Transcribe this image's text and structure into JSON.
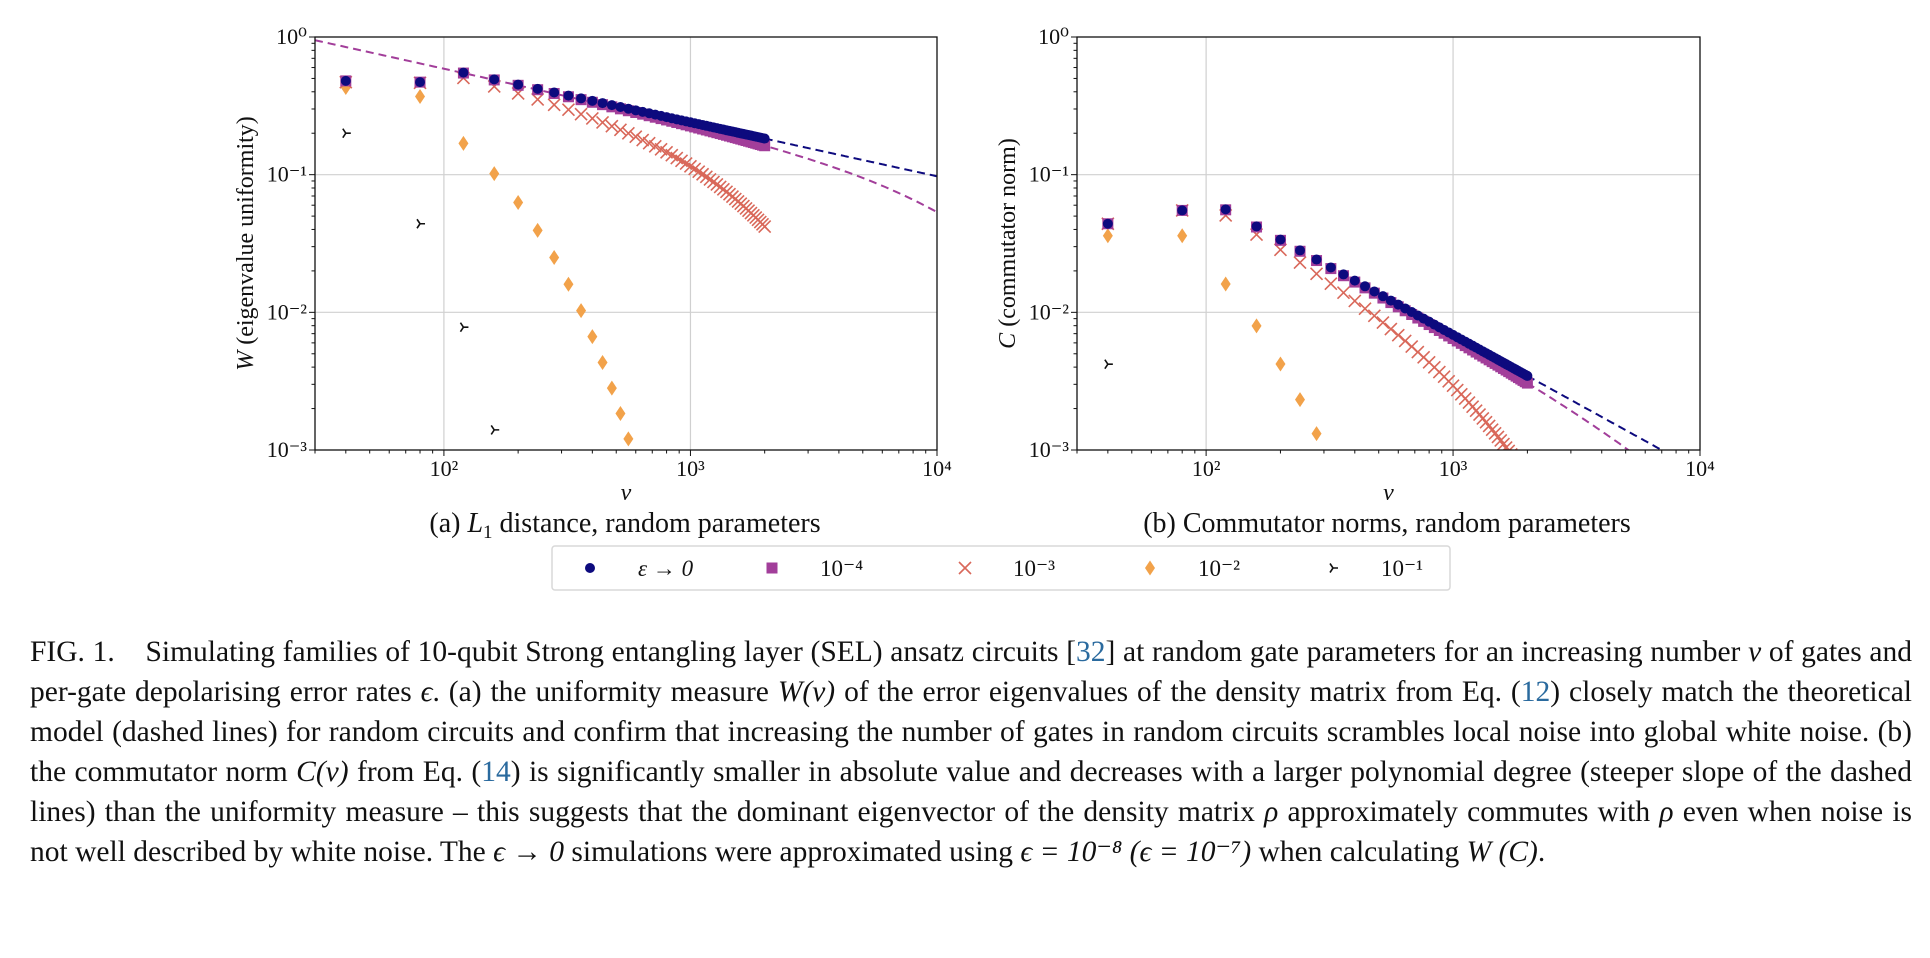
{
  "figure": {
    "panels": [
      {
        "id": "a",
        "ylabel": "W (eigenvalue uniformity)",
        "ylabel_var": "W",
        "ylabel_rest": " (eigenvalue uniformity)",
        "xlabel": "ν",
        "subcaption_prefix": "(a) ",
        "subcaption_var": "L",
        "subcaption_sub": "1",
        "subcaption_rest": " distance, random parameters"
      },
      {
        "id": "b",
        "ylabel": "C (commutator norm)",
        "ylabel_var": "C",
        "ylabel_rest": " (commutator norm)",
        "xlabel": "ν",
        "subcaption_prefix": "(b) ",
        "subcaption_var": "",
        "subcaption_sub": "",
        "subcaption_rest": "Commutator norms, random parameters"
      }
    ],
    "legend": [
      {
        "label": "ε → 0",
        "marker": "circle",
        "color": "#0d0a7e"
      },
      {
        "label": "10⁻⁴",
        "marker": "square",
        "color": "#a23e9a"
      },
      {
        "label": "10⁻³",
        "marker": "x",
        "color": "#d9685a"
      },
      {
        "label": "10⁻²",
        "marker": "diamond",
        "color": "#f2a24a"
      },
      {
        "label": "10⁻¹",
        "marker": "tri",
        "color": "#111111"
      }
    ]
  },
  "chart_data": [
    {
      "type": "scatter",
      "title": "(a) L1 distance, random parameters",
      "xlabel": "ν",
      "ylabel": "W (eigenvalue uniformity)",
      "xscale": "log",
      "yscale": "log",
      "xlim": [
        30,
        10000
      ],
      "ylim": [
        0.001,
        1
      ],
      "xticks": [
        "10²",
        "10³",
        "10⁴"
      ],
      "yticks": [
        "10⁰",
        "10⁻¹",
        "10⁻²",
        "10⁻³"
      ],
      "grid": true,
      "series": [
        {
          "name": "ε → 0",
          "marker": "circle",
          "color": "#0d0a7e",
          "model": "power",
          "a": 3.6,
          "p": -0.392,
          "xmax": 2000
        },
        {
          "name": "10⁻⁴",
          "marker": "square",
          "color": "#a23e9a",
          "model": "power_decay",
          "a": 3.6,
          "p": -0.392,
          "b": 6e-05,
          "xmax": 2000
        },
        {
          "name": "10⁻³",
          "marker": "x",
          "color": "#d9685a",
          "model": "power_decay",
          "a": 3.6,
          "p": -0.392,
          "b": 0.000736,
          "xmax": 2000
        },
        {
          "name": "10⁻²",
          "marker": "diamond",
          "color": "#f2a24a",
          "model": "power_decay",
          "a": 3.6,
          "p": -0.392,
          "b": 0.00986,
          "xmax": 640
        },
        {
          "name": "10⁻¹",
          "marker": "tri",
          "color": "#111111",
          "x": [
            40,
            80,
            120,
            160
          ],
          "y": [
            0.2,
            0.044,
            0.0078,
            0.0014
          ]
        }
      ],
      "first_points": {
        "x": [
          40,
          80
        ],
        "circle": [
          0.48,
          0.47
        ],
        "square": [
          0.48,
          0.47
        ],
        "x_marker": [
          0.47,
          0.465
        ],
        "diamond": [
          0.43,
          0.37
        ]
      },
      "theory_lines": [
        {
          "color": "#0d0a7e",
          "a": 3.6,
          "p": -0.392,
          "b": 0,
          "x_from": 30,
          "x_to": 10000,
          "dash_from": 2000
        },
        {
          "color": "#a23e9a",
          "a": 3.6,
          "p": -0.392,
          "b": 6e-05,
          "x_from": 30,
          "x_to": 10000,
          "dash_from": 30
        }
      ]
    },
    {
      "type": "scatter",
      "title": "(b) Commutator norms, random parameters",
      "xlabel": "ν",
      "ylabel": "C (commutator norm)",
      "xscale": "log",
      "yscale": "log",
      "xlim": [
        30,
        10000
      ],
      "ylim": [
        0.001,
        1
      ],
      "xticks": [
        "10²",
        "10³",
        "10⁴"
      ],
      "yticks": [
        "10⁰",
        "10⁻¹",
        "10⁻²",
        "10⁻³"
      ],
      "grid": true,
      "series": [
        {
          "name": "ε → 0",
          "marker": "circle",
          "color": "#0d0a7e",
          "model": "power",
          "a": 6.4,
          "p": -0.99,
          "xmax": 2000
        },
        {
          "name": "10⁻⁴",
          "marker": "square",
          "color": "#a23e9a",
          "model": "power_decay",
          "a": 6.4,
          "p": -0.99,
          "b": 6e-05,
          "xmax": 2000
        },
        {
          "name": "10⁻³",
          "marker": "x",
          "color": "#d9685a",
          "model": "power_decay",
          "a": 6.4,
          "p": -0.99,
          "b": 0.00085,
          "xmax": 2000
        },
        {
          "name": "10⁻²",
          "marker": "diamond",
          "color": "#f2a24a",
          "model": "power_decay",
          "a": 6.4,
          "p": -0.99,
          "b": 0.0104,
          "xmax": 400
        },
        {
          "name": "10⁻¹",
          "marker": "tri",
          "color": "#111111",
          "x": [
            40
          ],
          "y": [
            0.0042
          ]
        }
      ],
      "first_points": {
        "x": [
          40,
          80
        ],
        "circle": [
          0.044,
          0.055
        ],
        "square": [
          0.044,
          0.055
        ],
        "x_marker": [
          0.044,
          0.055
        ],
        "diamond": [
          0.036,
          0.036
        ]
      },
      "theory_lines": [
        {
          "color": "#0d0a7e",
          "a": 6.4,
          "p": -0.99,
          "b": 0,
          "x_from": 30,
          "x_to": 10000,
          "dash_from": 2000
        },
        {
          "color": "#a23e9a",
          "a": 6.4,
          "p": -0.99,
          "b": 6e-05,
          "x_from": 30,
          "x_to": 10000,
          "dash_from": 2000
        }
      ]
    }
  ],
  "caption": {
    "label": "FIG. 1.",
    "s1": "Simulating families of 10-qubit Strong entangling layer (SEL) ansatz circuits [",
    "ref_sel": "32",
    "s2": "] at random gate parameters for an increasing number ",
    "nu": "ν",
    "s3": " of gates and per-gate depolarising error rates ",
    "eps": "ϵ",
    "s4": ". (a) the uniformity measure ",
    "w_nu": "W(ν)",
    "s5": " of the error eigenvalues of the density matrix from Eq. (",
    "ref_eq12": "12",
    "s6": ") closely match the theoretical model (dashed lines) for random circuits and confirm that increasing the number of gates in random circuits scrambles local noise into global white noise. (b) the commutator norm ",
    "c_nu": "C(ν)",
    "s7": " from Eq. (",
    "ref_eq14": "14",
    "s8": ") is significantly smaller in absolute value and decreases with a larger polynomial degree (steeper slope of the dashed lines) than the uniformity measure – this suggests that the dominant eigenvector of the density matrix ",
    "rho1": "ρ",
    "s9": " approximately commutes with ",
    "rho2": "ρ",
    "s10": " even when noise is not well described by white noise. The ",
    "eps_to_0": "ϵ → 0",
    "s11": " simulations were approximated using ",
    "eq_w": "ϵ = 10⁻⁸",
    "eq_c": "(ϵ = 10⁻⁷)",
    "s12": " when calculating ",
    "w": "W",
    "c_paren": "(C)",
    "s13": "."
  }
}
